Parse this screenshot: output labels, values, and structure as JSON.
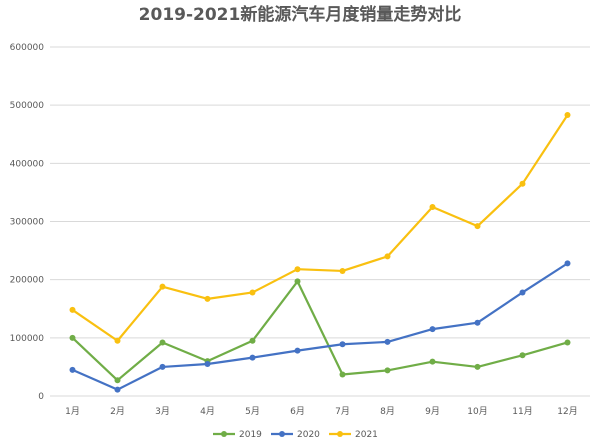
{
  "chart_data": {
    "type": "line",
    "title": "2019-2021新能源汽车月度销量走势对比",
    "xlabel": "",
    "ylabel": "",
    "categories": [
      "1月",
      "2月",
      "3月",
      "4月",
      "5月",
      "6月",
      "7月",
      "8月",
      "9月",
      "10月",
      "11月",
      "12月"
    ],
    "ylim": [
      0,
      600000
    ],
    "yticks": [
      "0",
      "100000",
      "200000",
      "300000",
      "400000",
      "500000",
      "600000"
    ],
    "grid": true,
    "legend_position": "bottom",
    "series": [
      {
        "name": "2019",
        "color": "#70ad47",
        "values": [
          100000,
          27000,
          92000,
          60000,
          95000,
          197000,
          37000,
          44000,
          59000,
          50000,
          70000,
          92000
        ]
      },
      {
        "name": "2020",
        "color": "#4472c4",
        "values": [
          45000,
          11000,
          50000,
          55000,
          66000,
          78000,
          89000,
          93000,
          115000,
          126000,
          178000,
          228000
        ]
      },
      {
        "name": "2021",
        "color": "#f9c010",
        "values": [
          148000,
          95000,
          188000,
          167000,
          178000,
          218000,
          215000,
          240000,
          325000,
          292000,
          365000,
          483000
        ]
      }
    ]
  }
}
